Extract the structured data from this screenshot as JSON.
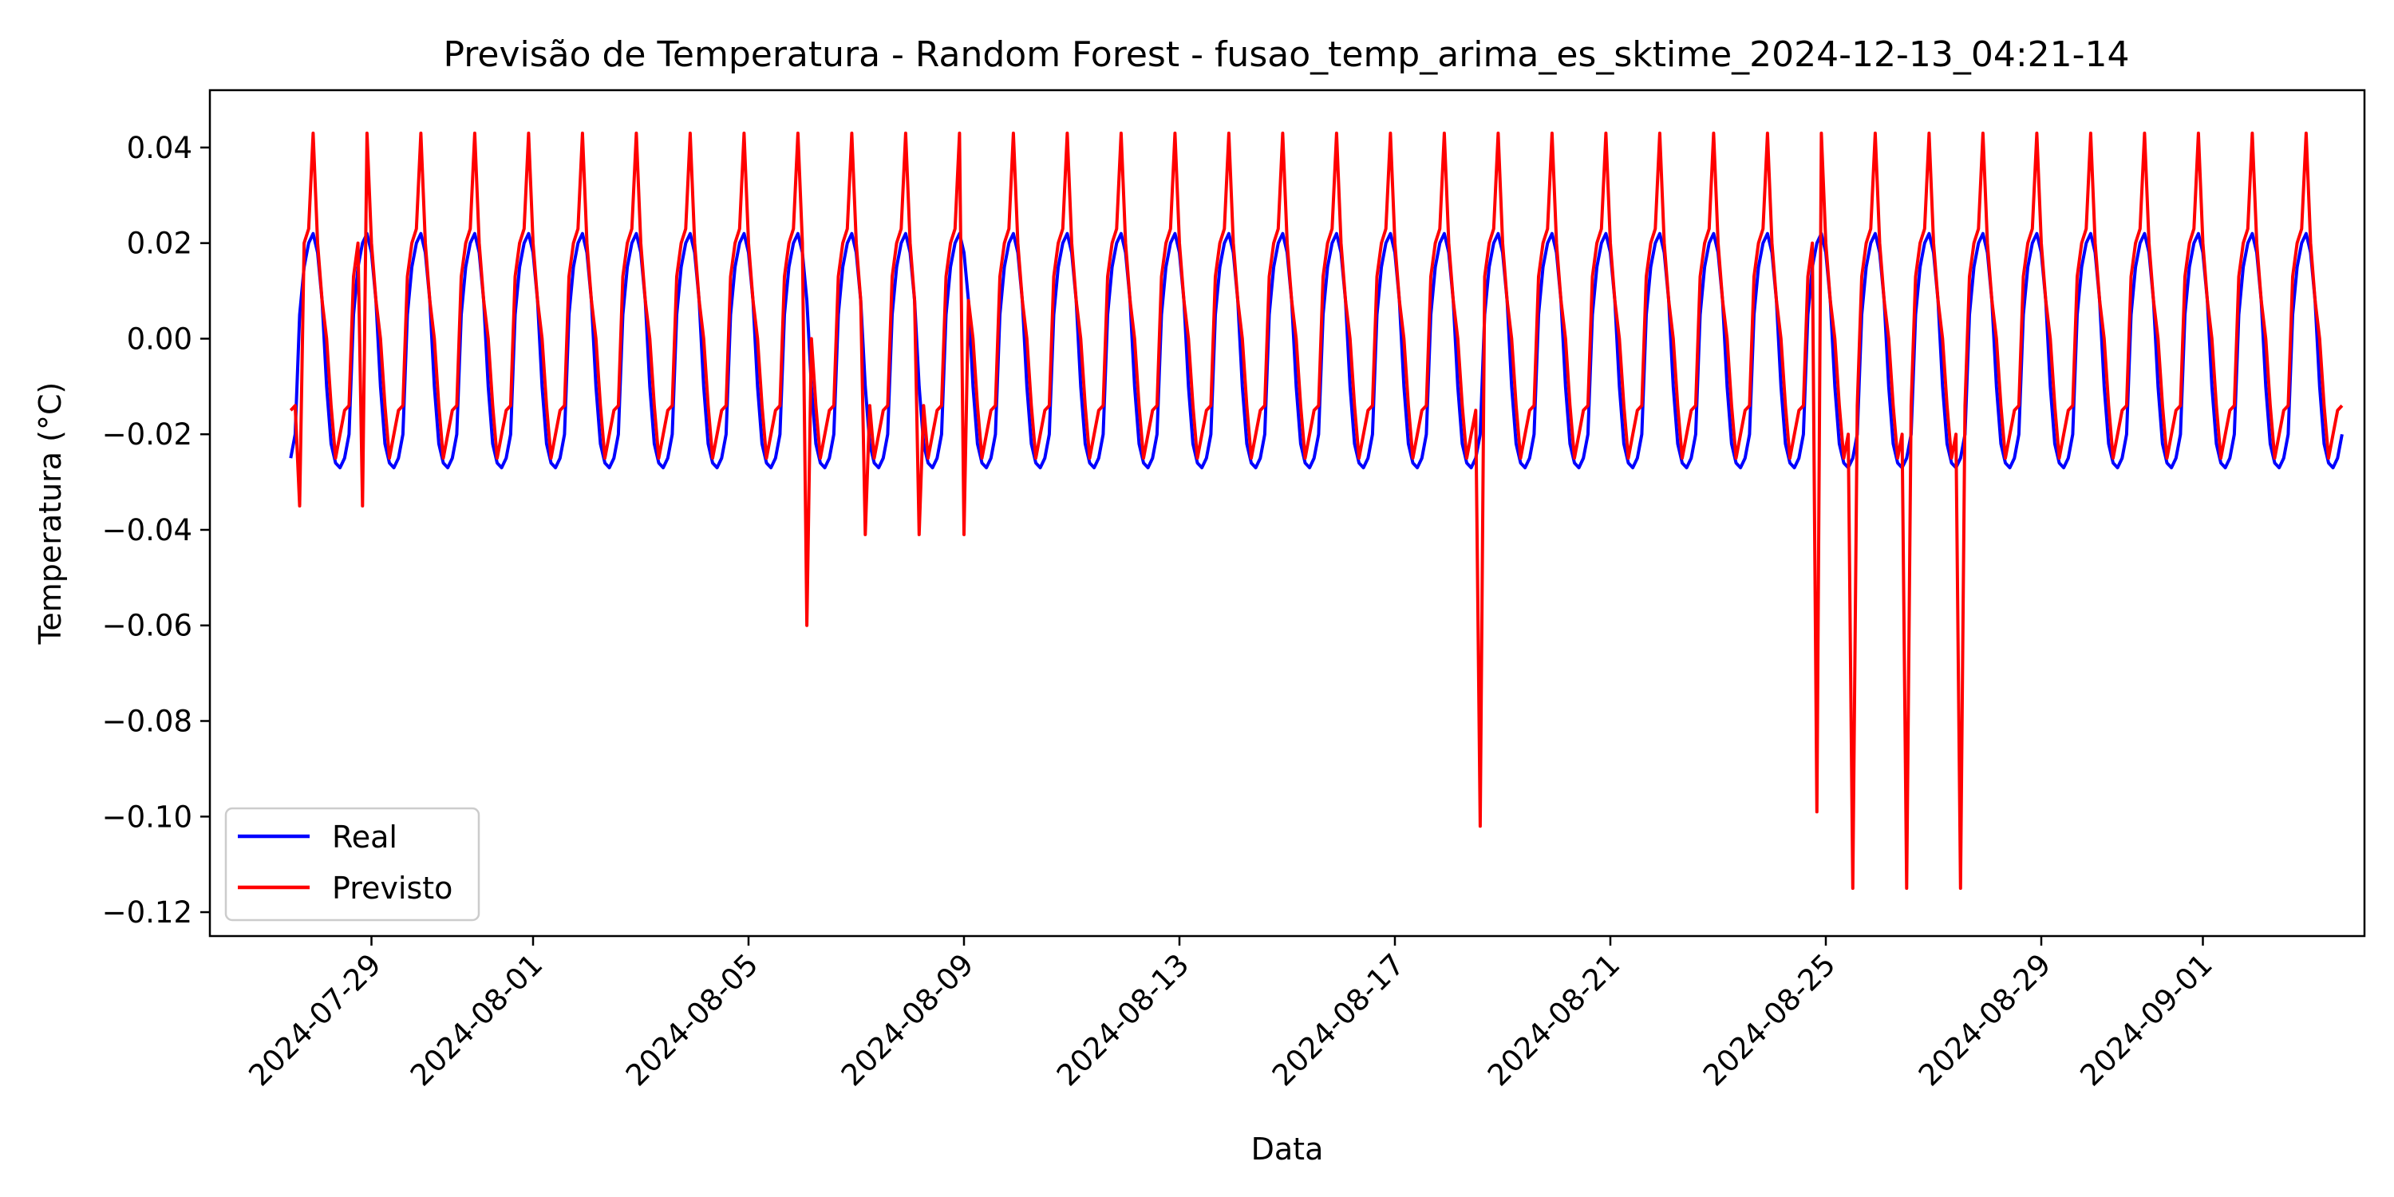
{
  "chart_data": {
    "type": "line",
    "title": "Previsão de Temperatura - Random Forest - fusao_temp_arima_es_sktime_2024-12-13_04:21-14",
    "xlabel": "Data",
    "ylabel": "Temperatura (°C)",
    "x_range": [
      "2024-07-26",
      "2024-09-04"
    ],
    "ylim": [
      -0.125,
      0.052
    ],
    "x_ticks": [
      "2024-07-29",
      "2024-08-01",
      "2024-08-05",
      "2024-08-09",
      "2024-08-13",
      "2024-08-17",
      "2024-08-21",
      "2024-08-25",
      "2024-08-29",
      "2024-09-01"
    ],
    "y_ticks": [
      0.04,
      0.02,
      0.0,
      -0.02,
      -0.04,
      -0.06,
      -0.08,
      -0.1,
      -0.12
    ],
    "y_tick_labels": [
      "0.04",
      "0.02",
      "0.00",
      "−0.02",
      "−0.04",
      "−0.06",
      "−0.08",
      "−0.10",
      "−0.12"
    ],
    "grid": false,
    "legend_position": "lower-left",
    "series": [
      {
        "name": "Real",
        "color": "#0000ff",
        "x_start": "2024-07-27T12:00",
        "x_end": "2024-09-03T14:00",
        "daily_profile": [
          -0.025,
          -0.02,
          0.005,
          0.015,
          0.02,
          0.022,
          0.018,
          0.008,
          -0.01,
          -0.022,
          -0.026,
          -0.027
        ]
      },
      {
        "name": "Previsto",
        "color": "#ff0000",
        "x_start": "2024-07-27T12:00",
        "x_end": "2024-09-03T14:00",
        "daily_profile": [
          -0.015,
          -0.014,
          0.013,
          0.02,
          0.023,
          0.043,
          0.02,
          0.008,
          0.0,
          -0.014,
          -0.025,
          -0.02
        ],
        "outliers": [
          {
            "x": "2024-07-27T16:00",
            "y": -0.035
          },
          {
            "x": "2024-07-28T20:00",
            "y": -0.035
          },
          {
            "x": "2024-08-06T03:00",
            "y": -0.06
          },
          {
            "x": "2024-08-07T04:00",
            "y": -0.041
          },
          {
            "x": "2024-08-08T04:00",
            "y": -0.041
          },
          {
            "x": "2024-08-09T00:00",
            "y": -0.041
          },
          {
            "x": "2024-08-18T14:00",
            "y": -0.102
          },
          {
            "x": "2024-08-24T20:00",
            "y": -0.099
          },
          {
            "x": "2024-08-25T12:00",
            "y": -0.115
          },
          {
            "x": "2024-08-26T12:00",
            "y": -0.115
          },
          {
            "x": "2024-08-27T12:00",
            "y": -0.115
          }
        ]
      }
    ]
  }
}
